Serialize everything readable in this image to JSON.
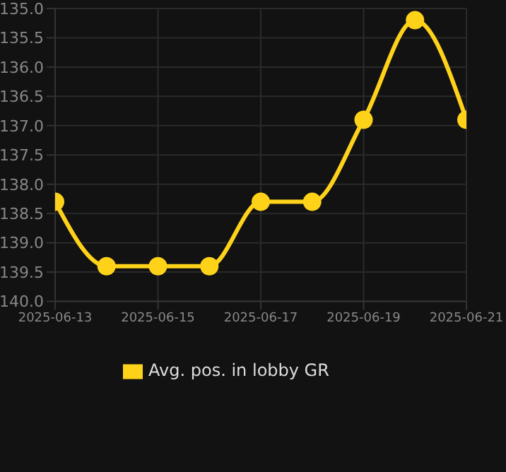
{
  "chart_data": {
    "type": "line",
    "x": [
      "2025-06-13",
      "2025-06-14",
      "2025-06-15",
      "2025-06-16",
      "2025-06-17",
      "2025-06-18",
      "2025-06-19",
      "2025-06-20",
      "2025-06-21"
    ],
    "series": [
      {
        "name": "Avg. pos. in lobby GR",
        "color": "#ffd21a",
        "values": [
          138.3,
          139.4,
          139.4,
          139.4,
          138.3,
          138.3,
          136.9,
          135.2,
          136.9
        ]
      }
    ],
    "xlim": [
      "2025-06-13",
      "2025-06-21"
    ],
    "xticks": [
      "2025-06-13",
      "2025-06-15",
      "2025-06-17",
      "2025-06-19",
      "2025-06-21"
    ],
    "ylim": [
      140,
      135
    ],
    "yticks": [
      {
        "value": 135,
        "label": "135.0"
      },
      {
        "value": 135.5,
        "label": "135.5"
      },
      {
        "value": 136,
        "label": "136.0"
      },
      {
        "value": 136.5,
        "label": "136.5"
      },
      {
        "value": 137,
        "label": "137.0"
      },
      {
        "value": 137.5,
        "label": "137.5"
      },
      {
        "value": 138,
        "label": "138.0"
      },
      {
        "value": 138.5,
        "label": "138.5"
      },
      {
        "value": 139,
        "label": "139.0"
      },
      {
        "value": 139.5,
        "label": "139.5"
      },
      {
        "value": 140,
        "label": "140.0"
      }
    ],
    "grid": true,
    "legend": "bottom",
    "marker": "circle",
    "line_style": "solid"
  }
}
